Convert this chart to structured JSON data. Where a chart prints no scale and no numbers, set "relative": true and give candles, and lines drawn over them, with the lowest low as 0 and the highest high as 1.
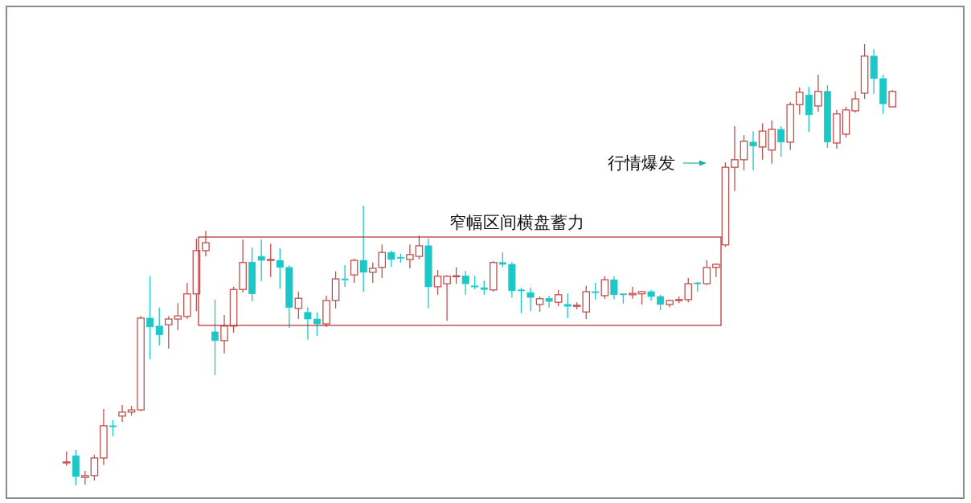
{
  "chart_data": {
    "type": "candlestick",
    "relative": true,
    "categories": [
      null,
      null,
      null,
      null,
      null,
      null,
      null,
      null,
      null,
      null,
      null,
      null,
      null,
      null,
      null,
      null,
      null,
      null,
      null,
      null,
      null,
      null,
      null,
      null,
      null,
      null,
      null,
      null,
      null,
      null,
      null,
      null,
      null,
      null,
      null,
      null,
      null,
      null,
      null,
      null,
      null,
      null,
      null,
      null,
      null,
      null,
      null,
      null,
      null,
      null,
      null,
      null,
      null,
      null,
      null,
      null,
      null,
      null,
      null,
      null,
      null,
      null,
      null,
      null,
      null,
      null,
      null,
      null,
      null,
      null,
      null,
      null,
      null,
      null,
      null,
      null,
      null,
      null,
      null,
      null,
      null,
      null,
      null,
      null,
      null,
      null,
      null,
      null,
      null,
      null
    ],
    "ohlc": [
      [
        0.051,
        0.077,
        0.044,
        0.053
      ],
      [
        0.067,
        0.08,
        0,
        0.02
      ],
      [
        0.018,
        0.033,
        0.002,
        0.022
      ],
      [
        0.022,
        0.069,
        0.011,
        0.062
      ],
      [
        0.062,
        0.173,
        0.046,
        0.135
      ],
      [
        0.135,
        0.148,
        0.111,
        0.133
      ],
      [
        0.157,
        0.182,
        0.144,
        0.166
      ],
      [
        0.166,
        0.18,
        0.158,
        0.171
      ],
      [
        0.171,
        0.384,
        0.168,
        0.379
      ],
      [
        0.379,
        0.474,
        0.286,
        0.359
      ],
      [
        0.361,
        0.403,
        0.317,
        0.341
      ],
      [
        0.364,
        0.384,
        0.31,
        0.377
      ],
      [
        0.377,
        0.413,
        0.352,
        0.384
      ],
      [
        0.383,
        0.459,
        0.377,
        0.434
      ],
      [
        0.434,
        0.559,
        0.395,
        0.532
      ],
      [
        0.532,
        0.577,
        0.519,
        0.55
      ],
      [
        0.348,
        0.421,
        0.25,
        0.328
      ],
      [
        0.328,
        0.386,
        0.299,
        0.361
      ],
      [
        0.361,
        0.45,
        0.346,
        0.444
      ],
      [
        0.444,
        0.557,
        0.437,
        0.505
      ],
      [
        0.506,
        0.539,
        0.417,
        0.434
      ],
      [
        0.519,
        0.557,
        0.463,
        0.51
      ],
      [
        0.51,
        0.548,
        0.472,
        0.512
      ],
      [
        0.51,
        0.537,
        0.446,
        0.494
      ],
      [
        0.494,
        0.499,
        0.357,
        0.403
      ],
      [
        0.401,
        0.439,
        0.377,
        0.424
      ],
      [
        0.392,
        0.404,
        0.33,
        0.377
      ],
      [
        0.377,
        0.392,
        0.339,
        0.366
      ],
      [
        0.366,
        0.43,
        0.359,
        0.419
      ],
      [
        0.419,
        0.485,
        0.401,
        0.468
      ],
      [
        0.468,
        0.499,
        0.45,
        0.466
      ],
      [
        0.477,
        0.514,
        0.459,
        0.51
      ],
      [
        0.51,
        0.634,
        0.439,
        0.483
      ],
      [
        0.483,
        0.505,
        0.459,
        0.492
      ],
      [
        0.494,
        0.546,
        0.47,
        0.528
      ],
      [
        0.528,
        0.532,
        0.495,
        0.512
      ],
      [
        0.517,
        0.525,
        0.505,
        0.515
      ],
      [
        0.512,
        0.546,
        0.492,
        0.523
      ],
      [
        0.519,
        0.566,
        0.512,
        0.543
      ],
      [
        0.543,
        0.559,
        0.401,
        0.45
      ],
      [
        0.45,
        0.488,
        0.432,
        0.474
      ],
      [
        0.457,
        0.477,
        0.373,
        0.474
      ],
      [
        0.474,
        0.494,
        0.457,
        0.475
      ],
      [
        0.475,
        0.486,
        0.432,
        0.457
      ],
      [
        0.452,
        0.475,
        0.444,
        0.45
      ],
      [
        0.448,
        0.464,
        0.432,
        0.444
      ],
      [
        0.443,
        0.508,
        0.439,
        0.505
      ],
      [
        0.505,
        0.528,
        0.494,
        0.501
      ],
      [
        0.501,
        0.506,
        0.426,
        0.441
      ],
      [
        0.443,
        0.448,
        0.39,
        0.441
      ],
      [
        0.437,
        0.448,
        0.395,
        0.426
      ],
      [
        0.41,
        0.428,
        0.393,
        0.423
      ],
      [
        0.424,
        0.43,
        0.403,
        0.417
      ],
      [
        0.415,
        0.443,
        0.406,
        0.432
      ],
      [
        0.41,
        0.435,
        0.379,
        0.406
      ],
      [
        0.406,
        0.415,
        0.399,
        0.408
      ],
      [
        0.393,
        0.452,
        0.377,
        0.439
      ],
      [
        0.439,
        0.459,
        0.421,
        0.437
      ],
      [
        0.43,
        0.474,
        0.423,
        0.466
      ],
      [
        0.466,
        0.474,
        0.421,
        0.432
      ],
      [
        0.434,
        0.435,
        0.412,
        0.432
      ],
      [
        0.432,
        0.45,
        0.423,
        0.435
      ],
      [
        0.434,
        0.441,
        0.41,
        0.439
      ],
      [
        0.439,
        0.443,
        0.419,
        0.428
      ],
      [
        0.428,
        0.432,
        0.397,
        0.41
      ],
      [
        0.41,
        0.421,
        0.404,
        0.419
      ],
      [
        0.419,
        0.428,
        0.413,
        0.421
      ],
      [
        0.421,
        0.47,
        0.415,
        0.457
      ],
      [
        0.459,
        0.461,
        0.439,
        0.457
      ],
      [
        0.457,
        0.51,
        0.454,
        0.494
      ],
      [
        0.494,
        0.503,
        0.472,
        0.501
      ],
      [
        0.545,
        0.732,
        0.541,
        0.721
      ],
      [
        0.721,
        0.814,
        0.667,
        0.738
      ],
      [
        0.738,
        0.794,
        0.714,
        0.78
      ],
      [
        0.778,
        0.803,
        0.714,
        0.769
      ],
      [
        0.767,
        0.821,
        0.738,
        0.803
      ],
      [
        0.76,
        0.827,
        0.729,
        0.807
      ],
      [
        0.807,
        0.814,
        0.745,
        0.778
      ],
      [
        0.778,
        0.869,
        0.76,
        0.863
      ],
      [
        0.863,
        0.902,
        0.84,
        0.891
      ],
      [
        0.885,
        0.903,
        0.801,
        0.84
      ],
      [
        0.86,
        0.931,
        0.847,
        0.893
      ],
      [
        0.893,
        0.907,
        0.765,
        0.778
      ],
      [
        0.776,
        0.851,
        0.763,
        0.842
      ],
      [
        0.796,
        0.858,
        0.789,
        0.851
      ],
      [
        0.849,
        0.893,
        0.845,
        0.876
      ],
      [
        0.889,
        1,
        0.876,
        0.973
      ],
      [
        0.973,
        0.989,
        0.887,
        0.922
      ],
      [
        0.922,
        0.931,
        0.842,
        0.865
      ],
      [
        0.858,
        0.896,
        0.858,
        0.893
      ]
    ],
    "colors": [
      "#c0504d",
      "#1cc7c7",
      "#c0504d",
      "#c0504d",
      "#c0504d",
      "#1cc7c7",
      "#c0504d",
      "#c0504d",
      "#c0504d",
      "#1cc7c7",
      "#1cc7c7",
      "#c0504d",
      "#c0504d",
      "#c0504d",
      "#c0504d",
      "#c0504d",
      "#1cc7c7",
      "#c0504d",
      "#c0504d",
      "#c0504d",
      "#1cc7c7",
      "#1cc7c7",
      "#c0504d",
      "#1cc7c7",
      "#1cc7c7",
      "#c0504d",
      "#1cc7c7",
      "#1cc7c7",
      "#c0504d",
      "#c0504d",
      "#1cc7c7",
      "#c0504d",
      "#1cc7c7",
      "#c0504d",
      "#c0504d",
      "#1cc7c7",
      "#1cc7c7",
      "#c0504d",
      "#c0504d",
      "#1cc7c7",
      "#c0504d",
      "#c0504d",
      "#c0504d",
      "#1cc7c7",
      "#1cc7c7",
      "#1cc7c7",
      "#c0504d",
      "#1cc7c7",
      "#1cc7c7",
      "#1cc7c7",
      "#1cc7c7",
      "#c0504d",
      "#1cc7c7",
      "#c0504d",
      "#1cc7c7",
      "#c0504d",
      "#c0504d",
      "#1cc7c7",
      "#c0504d",
      "#1cc7c7",
      "#1cc7c7",
      "#c0504d",
      "#c0504d",
      "#1cc7c7",
      "#1cc7c7",
      "#c0504d",
      "#c0504d",
      "#c0504d",
      "#1cc7c7",
      "#c0504d",
      "#c0504d",
      "#c0504d",
      "#c0504d",
      "#c0504d",
      "#1cc7c7",
      "#c0504d",
      "#c0504d",
      "#1cc7c7",
      "#c0504d",
      "#c0504d",
      "#1cc7c7",
      "#c0504d",
      "#1cc7c7",
      "#c0504d",
      "#c0504d",
      "#c0504d",
      "#c0504d",
      "#1cc7c7",
      "#1cc7c7",
      "#c0504d"
    ],
    "annotations": [
      "窄幅区间横盘蓄力",
      "行情爆发"
    ]
  }
}
